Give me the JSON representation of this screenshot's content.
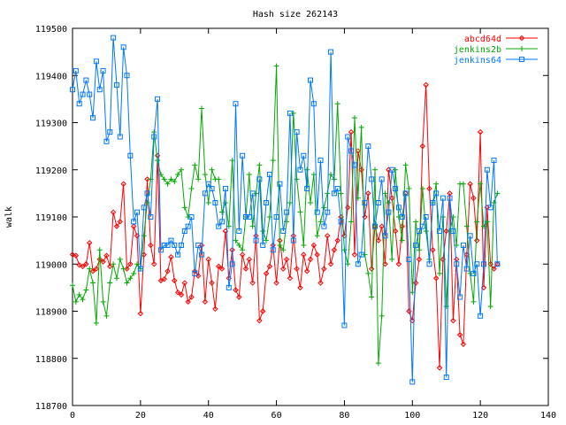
{
  "chart_data": {
    "type": "line",
    "title": "Hash size 262143",
    "xlabel": "",
    "ylabel": "walk",
    "xlim": [
      0,
      140
    ],
    "ylim": [
      118700,
      119500
    ],
    "xticks": [
      0,
      20,
      40,
      60,
      80,
      100,
      120,
      140
    ],
    "yticks": [
      118700,
      118800,
      118900,
      119000,
      119100,
      119200,
      119300,
      119400,
      119500
    ],
    "grid": false,
    "legend_position": "top-right",
    "x": [
      0,
      1,
      2,
      3,
      4,
      5,
      6,
      7,
      8,
      9,
      10,
      11,
      12,
      13,
      14,
      15,
      16,
      17,
      18,
      19,
      20,
      21,
      22,
      23,
      24,
      25,
      26,
      27,
      28,
      29,
      30,
      31,
      32,
      33,
      34,
      35,
      36,
      37,
      38,
      39,
      40,
      41,
      42,
      43,
      44,
      45,
      46,
      47,
      48,
      49,
      50,
      51,
      52,
      53,
      54,
      55,
      56,
      57,
      58,
      59,
      60,
      61,
      62,
      63,
      64,
      65,
      66,
      67,
      68,
      69,
      70,
      71,
      72,
      73,
      74,
      75,
      76,
      77,
      78,
      79,
      80,
      81,
      82,
      83,
      84,
      85,
      86,
      87,
      88,
      89,
      90,
      91,
      92,
      93,
      94,
      95,
      96,
      97,
      98,
      99,
      100,
      101,
      102,
      103,
      104,
      105,
      106,
      107,
      108,
      109,
      110,
      111,
      112,
      113,
      114,
      115,
      116,
      117,
      118,
      119,
      120,
      121,
      122,
      123,
      124,
      125
    ],
    "series": [
      {
        "name": "abcd64d",
        "color": "#ff0000",
        "marker": "diamond",
        "values": [
          119020,
          119018,
          118998,
          118995,
          119000,
          119045,
          118985,
          118990,
          119010,
          119005,
          119018,
          118995,
          119110,
          119080,
          119090,
          119170,
          118990,
          119000,
          119080,
          119060,
          118895,
          119020,
          119180,
          119040,
          119000,
          119230,
          118965,
          118968,
          118985,
          119015,
          118965,
          118940,
          118935,
          118960,
          118920,
          118930,
          118985,
          118975,
          119040,
          118920,
          119010,
          118960,
          118905,
          118995,
          118990,
          119070,
          118970,
          119030,
          118945,
          118930,
          119020,
          118990,
          119010,
          118960,
          119060,
          118880,
          118900,
          118980,
          118995,
          119040,
          118960,
          119050,
          118990,
          119010,
          118970,
          119060,
          118990,
          118950,
          119020,
          118985,
          119010,
          119040,
          119020,
          118960,
          118990,
          119060,
          119000,
          119030,
          119050,
          119100,
          119060,
          119120,
          119280,
          119020,
          119240,
          119200,
          119100,
          119150,
          118990,
          119080,
          119050,
          119080,
          119000,
          119200,
          119140,
          119070,
          119000,
          119080,
          119150,
          118900,
          118880,
          118960,
          119010,
          119250,
          119380,
          119160,
          119030,
          118970,
          118780,
          119010,
          119070,
          119150,
          118880,
          119010,
          118850,
          118830,
          119020,
          119170,
          119140,
          119050,
          119280,
          118950,
          119120,
          119000,
          118990,
          119000
        ]
      },
      {
        "name": "jenkins2b",
        "color": "#00aa00",
        "marker": "plus",
        "values": [
          118955,
          118920,
          118935,
          118925,
          118945,
          118990,
          118960,
          118875,
          119030,
          118920,
          118890,
          118960,
          119000,
          118970,
          119010,
          118990,
          118960,
          118970,
          118980,
          119000,
          118990,
          119060,
          119130,
          119180,
          119280,
          119220,
          119190,
          119180,
          119170,
          119180,
          119175,
          119190,
          119200,
          119120,
          119100,
          119160,
          119210,
          119180,
          119330,
          119190,
          119130,
          119200,
          119180,
          119180,
          119110,
          119130,
          119080,
          119220,
          119050,
          119040,
          119030,
          119100,
          119190,
          119080,
          119150,
          119210,
          119070,
          119050,
          119100,
          119220,
          119420,
          119040,
          119030,
          119090,
          119130,
          119320,
          119180,
          119110,
          119040,
          119200,
          119130,
          119190,
          119060,
          119090,
          119120,
          119150,
          119190,
          119180,
          119340,
          119150,
          119030,
          119000,
          119090,
          119310,
          119140,
          119290,
          119020,
          118980,
          118930,
          119200,
          118790,
          118890,
          119150,
          119130,
          119010,
          119200,
          119100,
          119050,
          119210,
          119160,
          118940,
          119090,
          119030,
          119160,
          119070,
          119010,
          119130,
          119170,
          118980,
          119100,
          118910,
          119070,
          119100,
          119040,
          119170,
          119170,
          119080,
          118980,
          118920,
          119090,
          119170,
          119080,
          119090,
          118910,
          119130,
          119150
        ]
      },
      {
        "name": "jenkins64",
        "color": "#0077ff",
        "marker": "square",
        "values": [
          119370,
          119410,
          119340,
          119360,
          119390,
          119360,
          119310,
          119430,
          119370,
          119410,
          119260,
          119280,
          119480,
          119380,
          119270,
          119460,
          119400,
          119230,
          119090,
          119110,
          118990,
          119120,
          119150,
          119100,
          119270,
          119350,
          119030,
          119040,
          119040,
          119050,
          119040,
          119020,
          119040,
          119070,
          119080,
          119100,
          118980,
          119040,
          119020,
          119150,
          119170,
          119160,
          119130,
          119080,
          119090,
          119160,
          118950,
          119000,
          119340,
          119070,
          119230,
          119100,
          119100,
          119150,
          119050,
          119180,
          119040,
          119130,
          119190,
          119030,
          119100,
          119170,
          119070,
          119110,
          119320,
          119050,
          119280,
          119200,
          119230,
          119160,
          119390,
          119340,
          119110,
          119220,
          119080,
          119110,
          119450,
          119150,
          119160,
          119090,
          118870,
          119270,
          119240,
          119210,
          119000,
          119020,
          119130,
          119250,
          119180,
          119080,
          119130,
          119180,
          119060,
          119110,
          119200,
          119160,
          119120,
          119100,
          119150,
          119010,
          118750,
          119040,
          119070,
          119080,
          119100,
          119000,
          119130,
          119150,
          119070,
          119140,
          118760,
          119140,
          119070,
          119000,
          118930,
          119040,
          118990,
          119060,
          118980,
          119000,
          118890,
          119000,
          119200,
          119120,
          119220,
          119000
        ]
      }
    ]
  }
}
